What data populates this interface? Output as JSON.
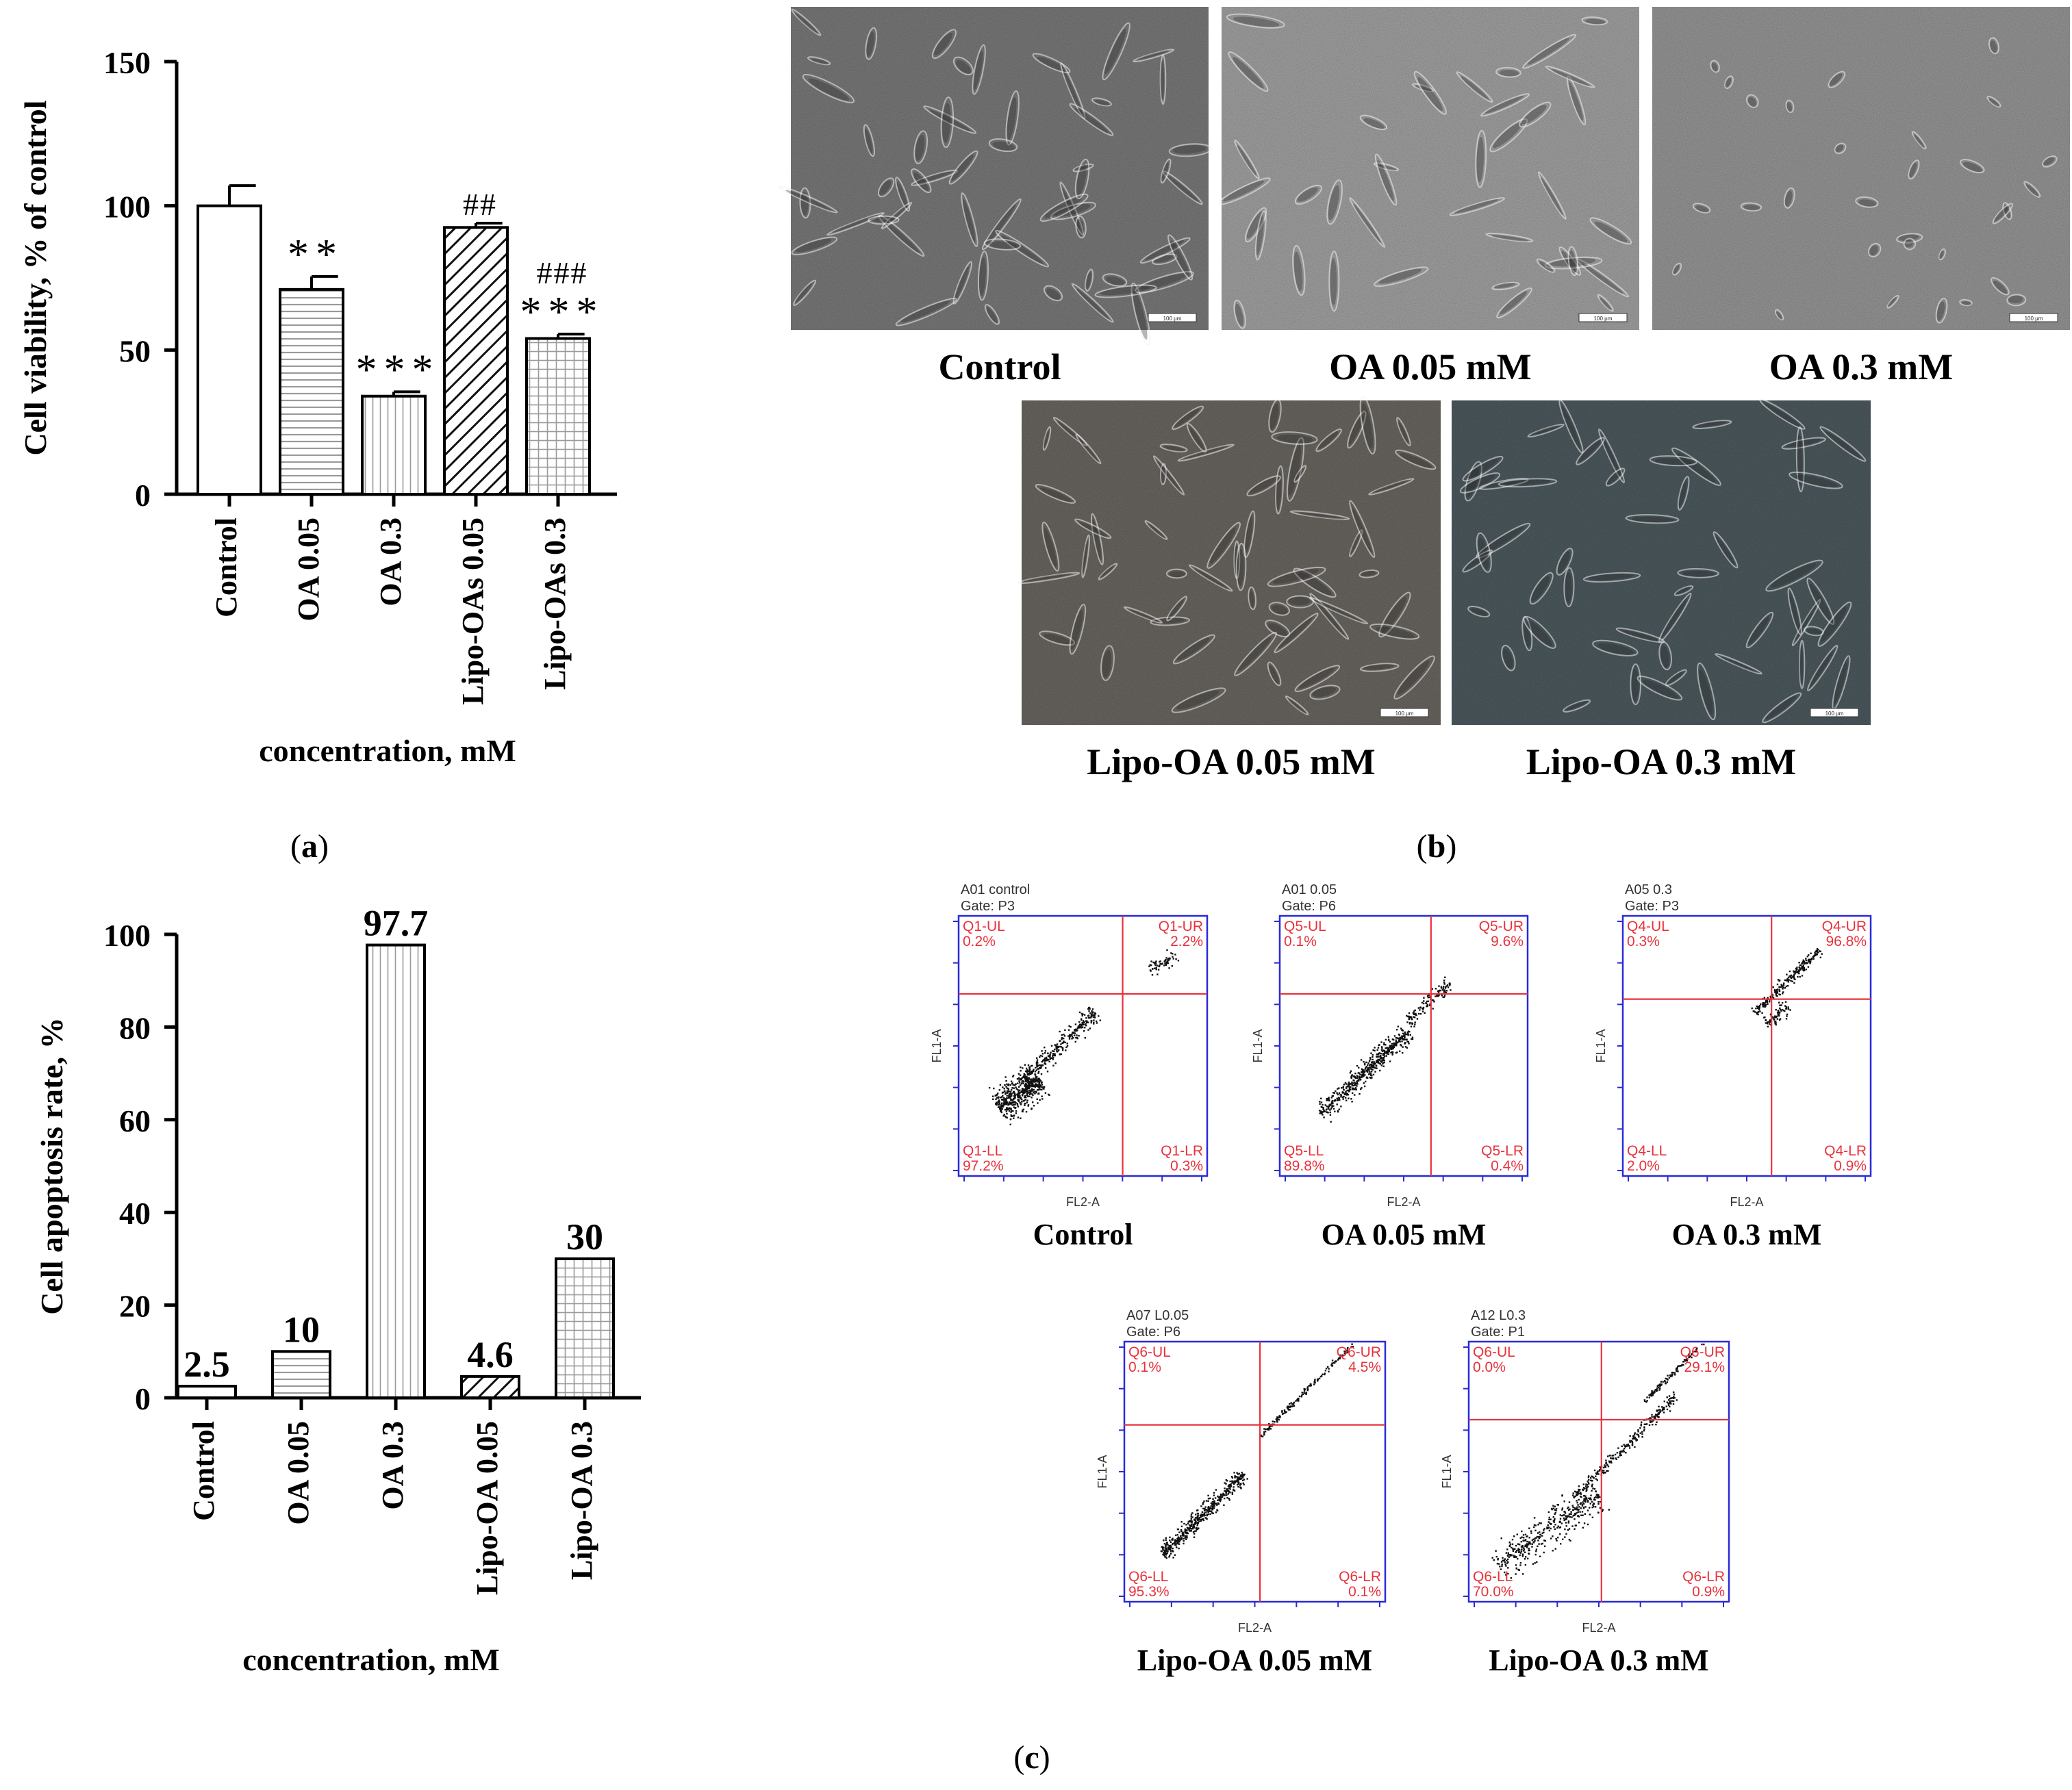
{
  "panels": {
    "a": {
      "letter": "a"
    },
    "b": {
      "letter": "b"
    },
    "c": {
      "letter": "c"
    }
  },
  "chart_data": [
    {
      "id": "a",
      "type": "bar",
      "ylabel": "Cell viability, % of control",
      "xlabel": "concentration, mM",
      "ylim": [
        0,
        150
      ],
      "yticks": [
        "0",
        "50",
        "100",
        "150"
      ],
      "categories": [
        "Control",
        "OA 0.05",
        "OA 0.3",
        "Lipo-OAs 0.05",
        "Lipo-OAs 0.3"
      ],
      "values": [
        100,
        71,
        34,
        92.5,
        54
      ],
      "errors": [
        7,
        4.5,
        1.5,
        1.5,
        1.5
      ],
      "fill_patterns": [
        "none",
        "horizontal-lines",
        "vertical-lines",
        "diagonal-lines",
        "grid"
      ],
      "annotations": [
        {
          "category": "OA 0.05",
          "lines": [
            "**"
          ]
        },
        {
          "category": "OA 0.3",
          "lines": [
            "***"
          ]
        },
        {
          "category": "Lipo-OAs 0.05",
          "lines": [
            "##"
          ]
        },
        {
          "category": "Lipo-OAs 0.3",
          "lines": [
            "###",
            "***"
          ]
        }
      ],
      "grid": false,
      "legend": "none"
    },
    {
      "id": "c-left",
      "type": "bar",
      "ylabel": "Cell apoptosis rate, %",
      "xlabel": "concentration, mM",
      "ylim": [
        0,
        100
      ],
      "yticks": [
        "0",
        "20",
        "40",
        "60",
        "80",
        "100"
      ],
      "categories": [
        "Control",
        "OA 0.05",
        "OA 0.3",
        "Lipo-OA 0.05",
        "Lipo-OA 0.3"
      ],
      "values": [
        2.5,
        10,
        97.7,
        4.6,
        30
      ],
      "value_labels": [
        "2.5",
        "10",
        "97.7",
        "4.6",
        "30"
      ],
      "fill_patterns": [
        "none",
        "horizontal-lines",
        "vertical-lines",
        "diagonal-lines",
        "grid"
      ],
      "grid": false,
      "legend": "none"
    }
  ],
  "micrographs": [
    {
      "caption": "Control",
      "tone": "#7e7e7e",
      "scale_text": "100 μm"
    },
    {
      "caption": "OA 0.05 mM",
      "tone": "#a8a8a8",
      "scale_text": "100 μm"
    },
    {
      "caption": "OA 0.3 mM",
      "tone": "#9c9c9c",
      "scale_text": "100 μm"
    },
    {
      "caption": "Lipo-OA 0.05 mM",
      "tone": "#6e6a64",
      "scale_text": "100 μm"
    },
    {
      "caption": "Lipo-OA 0.3 mM",
      "tone": "#4f5d62",
      "scale_text": "100 μm"
    }
  ],
  "flow_plots": [
    {
      "header": "A01 control",
      "gate": "Gate: P3",
      "x_axis": "FL2-A",
      "y_axis": "FL1-A",
      "quadrants": {
        "ul": "Q1-UL",
        "ul_val": "0.2%",
        "ur": "Q1-UR",
        "ur_val": "2.2%",
        "ll": "Q1-LL",
        "ll_val": "97.2%",
        "lr": "Q1-LR",
        "lr_val": "0.3%"
      },
      "caption": "Control"
    },
    {
      "header": "A01 0.05",
      "gate": "Gate: P6",
      "x_axis": "FL2-A",
      "y_axis": "FL1-A",
      "quadrants": {
        "ul": "Q5-UL",
        "ul_val": "0.1%",
        "ur": "Q5-UR",
        "ur_val": "9.6%",
        "ll": "Q5-LL",
        "ll_val": "89.8%",
        "lr": "Q5-LR",
        "lr_val": "0.4%"
      },
      "caption": "OA 0.05 mM"
    },
    {
      "header": "A05 0.3",
      "gate": "Gate: P3",
      "x_axis": "FL2-A",
      "y_axis": "FL1-A",
      "quadrants": {
        "ul": "Q4-UL",
        "ul_val": "0.3%",
        "ur": "Q4-UR",
        "ur_val": "96.8%",
        "ll": "Q4-LL",
        "ll_val": "2.0%",
        "lr": "Q4-LR",
        "lr_val": "0.9%"
      },
      "caption": "OA 0.3 mM"
    },
    {
      "header": "A07 L0.05",
      "gate": "Gate: P6",
      "x_axis": "FL2-A",
      "y_axis": "FL1-A",
      "quadrants": {
        "ul": "Q6-UL",
        "ul_val": "0.1%",
        "ur": "Q6-UR",
        "ur_val": "4.5%",
        "ll": "Q6-LL",
        "ll_val": "95.3%",
        "lr": "Q6-LR",
        "lr_val": "0.1%"
      },
      "caption": "Lipo-OA 0.05 mM"
    },
    {
      "header": "A12 L0.3",
      "gate": "Gate: P1",
      "x_axis": "FL2-A",
      "y_axis": "FL1-A",
      "quadrants": {
        "ul": "Q6-UL",
        "ul_val": "0.0%",
        "ur": "Q6-UR",
        "ur_val": "29.1%",
        "ll": "Q6-LL",
        "ll_val": "70.0%",
        "lr": "Q6-LR",
        "lr_val": "0.9%"
      },
      "caption": "Lipo-OA 0.3 mM"
    }
  ],
  "colors": {
    "axis": "#000000",
    "flow_frame": "#2a2ad8",
    "flow_gate": "#e8323c",
    "flow_text": "#e8323c"
  }
}
